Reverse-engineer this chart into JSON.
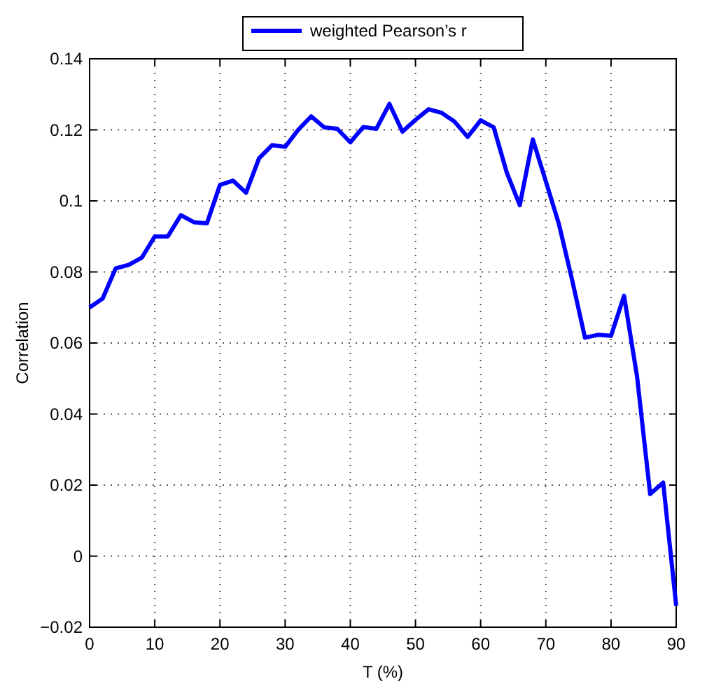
{
  "chart_data": {
    "type": "line",
    "xlabel": "T (%)",
    "ylabel": "Correlation",
    "x": [
      0,
      2,
      4,
      6,
      8,
      10,
      12,
      14,
      16,
      18,
      20,
      22,
      24,
      26,
      28,
      30,
      32,
      34,
      36,
      38,
      40,
      42,
      44,
      46,
      48,
      50,
      52,
      54,
      56,
      58,
      60,
      62,
      64,
      66,
      68,
      70,
      72,
      74,
      76,
      78,
      80,
      82,
      84,
      86,
      88,
      90
    ],
    "series": [
      {
        "name": "weighted Pearson’s r",
        "color": "#0000ff",
        "values": [
          0.07,
          0.0725,
          0.081,
          0.082,
          0.084,
          0.09,
          0.09,
          0.096,
          0.094,
          0.0937,
          0.1045,
          0.1057,
          0.1023,
          0.112,
          0.1157,
          0.1152,
          0.12,
          0.1238,
          0.1207,
          0.1203,
          0.1165,
          0.1208,
          0.1203,
          0.1273,
          0.1195,
          0.1228,
          0.1258,
          0.1248,
          0.1223,
          0.118,
          0.1227,
          0.1207,
          0.108,
          0.0988,
          0.1173,
          0.1055,
          0.0935,
          0.078,
          0.0615,
          0.0623,
          0.062,
          0.0733,
          0.0505,
          0.0175,
          0.0207,
          -0.014
        ]
      }
    ],
    "xlim": [
      0,
      90
    ],
    "xticks": [
      0,
      10,
      20,
      30,
      40,
      50,
      60,
      70,
      80,
      90
    ],
    "ylim": [
      -0.02,
      0.14
    ],
    "yticks": [
      {
        "value": -0.02,
        "label": "−0.02"
      },
      0,
      0.02,
      0.04,
      0.06,
      0.08,
      {
        "value": 0.1,
        "label": "0.1"
      },
      0.12,
      0.14
    ],
    "grid": true,
    "legend": "top",
    "line_style": "solid",
    "marker": "none"
  }
}
